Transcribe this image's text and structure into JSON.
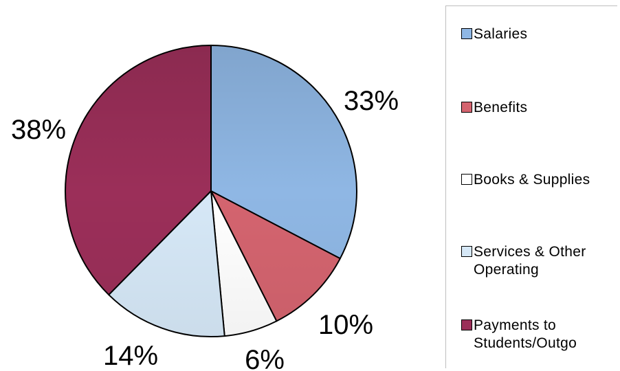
{
  "chart_data": {
    "type": "pie",
    "title": "",
    "slices": [
      {
        "label": "Salaries",
        "value": 33,
        "value_label": "33%",
        "color": "#8fb7e4"
      },
      {
        "label": "Benefits",
        "value": 10,
        "value_label": "10%",
        "color": "#d4646f"
      },
      {
        "label": "Books & Supplies",
        "value": 6,
        "value_label": "6%",
        "color": "#ffffff"
      },
      {
        "label": "Services & Other Operating",
        "value": 14,
        "value_label": "14%",
        "color": "#d6e8f7"
      },
      {
        "label": "Payments to Students/Outgo",
        "value": 38,
        "value_label": "38%",
        "color": "#9b2f59"
      }
    ],
    "start_angle_deg": 0,
    "direction": "clockwise",
    "legend_position": "right"
  },
  "legend": {
    "items": [
      {
        "label": "Salaries"
      },
      {
        "label": "Benefits"
      },
      {
        "label": "Books & Supplies"
      },
      {
        "label": "Services & Other\nOperating"
      },
      {
        "label": "Payments to\nStudents/Outgo"
      }
    ]
  }
}
